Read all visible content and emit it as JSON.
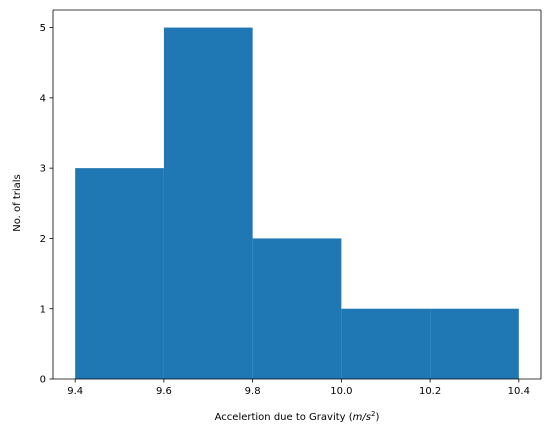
{
  "chart_data": {
    "type": "bar",
    "subtype": "histogram",
    "bins": [
      {
        "start": 9.4,
        "end": 9.6,
        "count": 3
      },
      {
        "start": 9.6,
        "end": 9.8,
        "count": 5
      },
      {
        "start": 9.8,
        "end": 10.0,
        "count": 2
      },
      {
        "start": 10.0,
        "end": 10.2,
        "count": 1
      },
      {
        "start": 10.2,
        "end": 10.4,
        "count": 1
      }
    ],
    "xlabel": "Accelertion due to Gravity (m/s²)",
    "xlabel_prefix": "Accelertion due to Gravity (",
    "xlabel_unit_m": "m",
    "xlabel_unit_sep": "/",
    "xlabel_unit_s": "s",
    "xlabel_unit_exp": "2",
    "xlabel_suffix": ")",
    "ylabel": "No. of trials",
    "xlim": [
      9.35,
      10.45
    ],
    "ylim": [
      0,
      5.25
    ],
    "xticks": [
      9.4,
      9.6,
      9.8,
      10.0,
      10.2,
      10.4
    ],
    "xtick_labels": [
      "9.4",
      "9.6",
      "9.8",
      "10.0",
      "10.2",
      "10.4"
    ],
    "yticks": [
      0,
      1,
      2,
      3,
      4,
      5
    ],
    "ytick_labels": [
      "0",
      "1",
      "2",
      "3",
      "4",
      "5"
    ],
    "bar_color": "#1f77b4",
    "grid": false,
    "legend": "none"
  }
}
